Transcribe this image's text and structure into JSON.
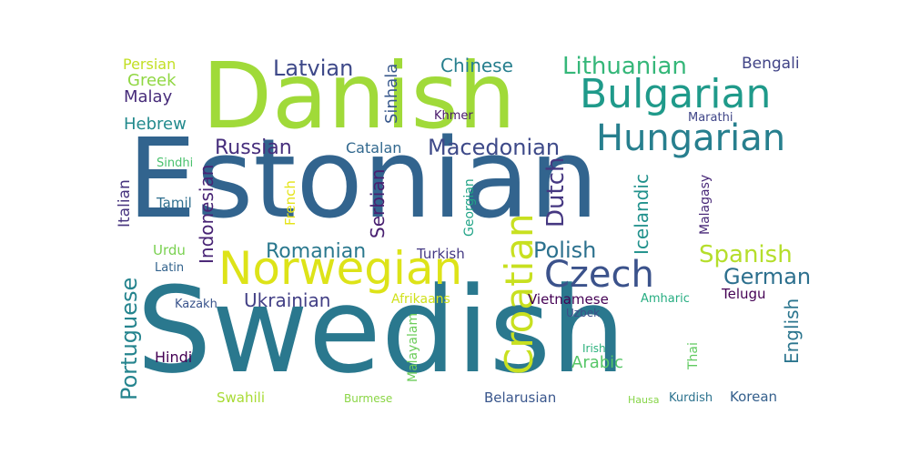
{
  "words": [
    {
      "text": "Swedish",
      "color": "#2a788e"
    },
    {
      "text": "Estonian",
      "color": "#32648e"
    },
    {
      "text": "Danish",
      "color": "#a0da39"
    },
    {
      "text": "Norwegian",
      "color": "#dde318"
    },
    {
      "text": "Croatian",
      "color": "#c8e020"
    },
    {
      "text": "Bulgarian",
      "color": "#1f9a8a"
    },
    {
      "text": "Hungarian",
      "color": "#277f8e"
    },
    {
      "text": "Czech",
      "color": "#3b528b"
    },
    {
      "text": "Latvian",
      "color": "#3e4989"
    },
    {
      "text": "Chinese",
      "color": "#277f8e"
    },
    {
      "text": "Lithuanian",
      "color": "#35b779"
    },
    {
      "text": "Bengali",
      "color": "#414487"
    },
    {
      "text": "Persian",
      "color": "#c2df23"
    },
    {
      "text": "Greek",
      "color": "#90d743"
    },
    {
      "text": "Malay",
      "color": "#472c7a"
    },
    {
      "text": "Hebrew",
      "color": "#238a8d"
    },
    {
      "text": "Sinhala",
      "color": "#38588c"
    },
    {
      "text": "Khmer",
      "color": "#48186a"
    },
    {
      "text": "Marathi",
      "color": "#404688"
    },
    {
      "text": "Russian",
      "color": "#472f7d"
    },
    {
      "text": "Catalan",
      "color": "#31688e"
    },
    {
      "text": "Macedonian",
      "color": "#3e4a89"
    },
    {
      "text": "Sindhi",
      "color": "#4ac16d"
    },
    {
      "text": "Italian",
      "color": "#46337e"
    },
    {
      "text": "Tamil",
      "color": "#2e6e8e"
    },
    {
      "text": "Indonesian",
      "color": "#482475"
    },
    {
      "text": "French",
      "color": "#e5e419"
    },
    {
      "text": "Serbian",
      "color": "#481f70"
    },
    {
      "text": "Georgian",
      "color": "#20a386"
    },
    {
      "text": "Dutch",
      "color": "#453781"
    },
    {
      "text": "Icelandic",
      "color": "#21918c"
    },
    {
      "text": "Malagasy",
      "color": "#482878"
    },
    {
      "text": "Romanian",
      "color": "#2a788e"
    },
    {
      "text": "Turkish",
      "color": "#443983"
    },
    {
      "text": "Polish",
      "color": "#2c718e"
    },
    {
      "text": "Spanish",
      "color": "#b5de2b"
    },
    {
      "text": "German",
      "color": "#2d708e"
    },
    {
      "text": "Urdu",
      "color": "#7ad151"
    },
    {
      "text": "Latin",
      "color": "#33638d"
    },
    {
      "text": "Portuguese",
      "color": "#25848e"
    },
    {
      "text": "Ukrainian",
      "color": "#423f85"
    },
    {
      "text": "Afrikaans",
      "color": "#d0e11c"
    },
    {
      "text": "Vietnamese",
      "color": "#440154"
    },
    {
      "text": "Amharic",
      "color": "#26ad81"
    },
    {
      "text": "Telugu",
      "color": "#440154"
    },
    {
      "text": "English",
      "color": "#2b758e"
    },
    {
      "text": "Kazakh",
      "color": "#3a548c"
    },
    {
      "text": "Malayalam",
      "color": "#6ccd5a"
    },
    {
      "text": "Uzbek",
      "color": "#3d4e8a"
    },
    {
      "text": "Hindi",
      "color": "#440154"
    },
    {
      "text": "Arabic",
      "color": "#56c667"
    },
    {
      "text": "Irish",
      "color": "#2db27d"
    },
    {
      "text": "Thai",
      "color": "#60ca60"
    },
    {
      "text": "Swahili",
      "color": "#a8db34"
    },
    {
      "text": "Burmese",
      "color": "#8bd646"
    },
    {
      "text": "Belarusian",
      "color": "#39568c"
    },
    {
      "text": "Hausa",
      "color": "#87d549"
    },
    {
      "text": "Kurdish",
      "color": "#2c728e"
    },
    {
      "text": "Korean",
      "color": "#35608d"
    }
  ]
}
